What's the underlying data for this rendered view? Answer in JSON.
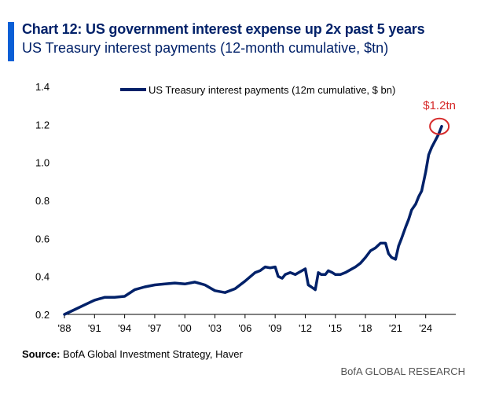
{
  "header": {
    "title": "Chart 12: US government interest expense up 2x past 5 years",
    "subtitle": "US Treasury interest payments (12-month cumulative, $tn)"
  },
  "footer": {
    "source_label": "Source:",
    "source_text": " BofA Global Investment Strategy, Haver",
    "brand": "BofA GLOBAL RESEARCH"
  },
  "colors": {
    "line": "#012169",
    "highlight": "#d62b2b",
    "accent": "#0a5fd6"
  },
  "chart_data": {
    "type": "line",
    "title": "",
    "xlabel": "",
    "ylabel": "",
    "xlim": [
      1988.0,
      2027.0
    ],
    "ylim": [
      0.2,
      1.4
    ],
    "yticks": [
      0.2,
      0.4,
      0.6,
      0.8,
      1.0,
      1.2,
      1.4
    ],
    "ytick_labels": [
      "0.2",
      "0.4",
      "0.6",
      "0.8",
      "1.0",
      "1.2",
      "1.4"
    ],
    "xticks": [
      1988,
      1991,
      1994,
      1997,
      2000,
      2003,
      2006,
      2009,
      2012,
      2015,
      2018,
      2021,
      2024
    ],
    "xtick_labels": [
      "'88",
      "'91",
      "'94",
      "'97",
      "'00",
      "'03",
      "'06",
      "'09",
      "'12",
      "'15",
      "'18",
      "'21",
      "'24"
    ],
    "legend": {
      "label": "US Treasury interest payments (12m cumulative, $ bn)",
      "position": "top-center"
    },
    "annotation": {
      "text": "$1.2tn",
      "x": 2025.6,
      "y": 1.19
    },
    "series": [
      {
        "name": "US Treasury interest payments (12m cumulative, $ bn)",
        "x": [
          1988.0,
          1989.0,
          1990.0,
          1991.0,
          1992.0,
          1993.0,
          1994.0,
          1995.0,
          1996.0,
          1997.0,
          1998.0,
          1999.0,
          2000.0,
          2001.0,
          2002.0,
          2003.0,
          2004.0,
          2005.0,
          2006.0,
          2007.0,
          2007.5,
          2008.0,
          2008.5,
          2009.0,
          2009.3,
          2009.7,
          2010.0,
          2010.5,
          2011.0,
          2011.5,
          2012.0,
          2012.3,
          2012.6,
          2013.0,
          2013.3,
          2013.6,
          2014.0,
          2014.3,
          2014.7,
          2015.0,
          2015.5,
          2016.0,
          2016.5,
          2017.0,
          2017.5,
          2018.0,
          2018.5,
          2019.0,
          2019.5,
          2020.0,
          2020.3,
          2020.6,
          2021.0,
          2021.3,
          2021.6,
          2022.0,
          2022.3,
          2022.6,
          2023.0,
          2023.3,
          2023.6,
          2024.0,
          2024.3,
          2024.6,
          2025.0,
          2025.3,
          2025.6
        ],
        "values": [
          0.2,
          0.225,
          0.25,
          0.275,
          0.29,
          0.29,
          0.295,
          0.33,
          0.345,
          0.355,
          0.36,
          0.365,
          0.36,
          0.37,
          0.355,
          0.325,
          0.315,
          0.335,
          0.375,
          0.42,
          0.43,
          0.45,
          0.445,
          0.45,
          0.4,
          0.39,
          0.41,
          0.42,
          0.41,
          0.425,
          0.44,
          0.355,
          0.345,
          0.33,
          0.42,
          0.41,
          0.41,
          0.43,
          0.42,
          0.41,
          0.41,
          0.42,
          0.435,
          0.45,
          0.47,
          0.5,
          0.535,
          0.55,
          0.575,
          0.575,
          0.52,
          0.5,
          0.49,
          0.56,
          0.6,
          0.66,
          0.7,
          0.75,
          0.78,
          0.82,
          0.85,
          0.95,
          1.04,
          1.08,
          1.12,
          1.15,
          1.19
        ]
      }
    ]
  }
}
